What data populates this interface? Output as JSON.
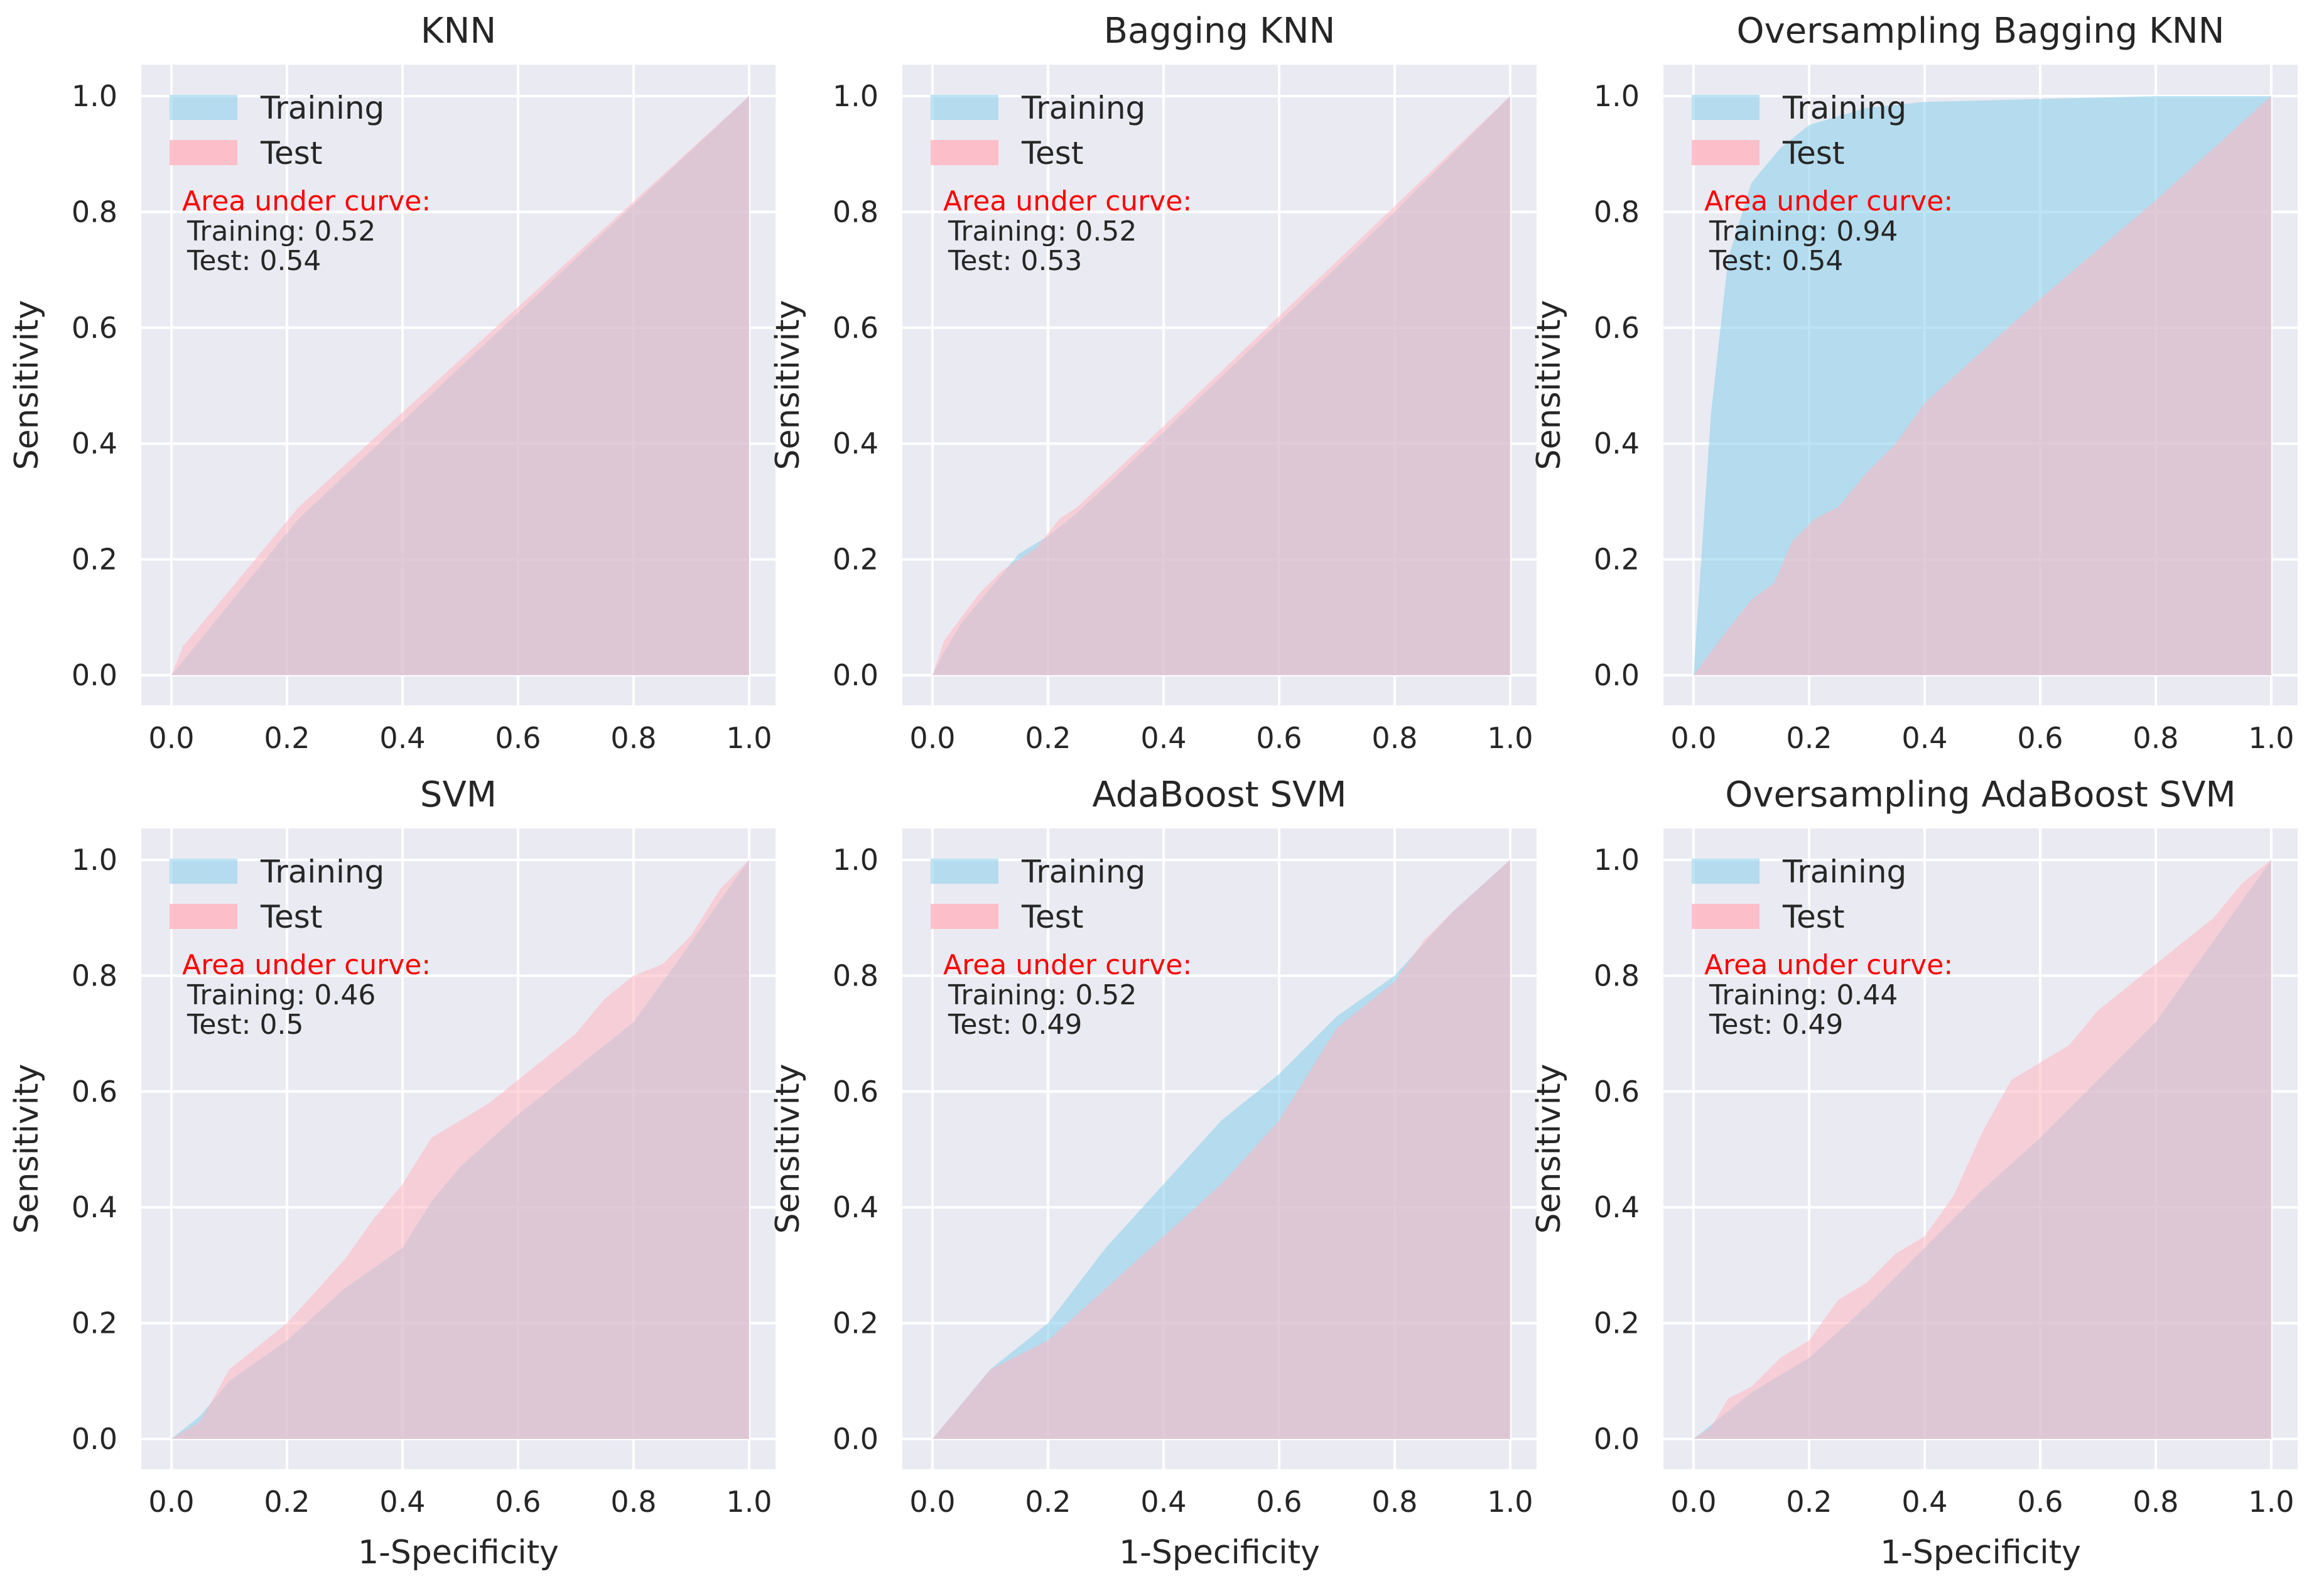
{
  "figure": {
    "colors": {
      "background": "#eaeaf2",
      "grid": "#ffffff",
      "training": "#87ceeb",
      "test": "#ffb6c1",
      "overlap": "#d9b4c0",
      "annotation": "#ff0000"
    }
  },
  "chart_data": [
    {
      "type": "area",
      "title": "KNN",
      "xlabel": "",
      "ylabel": "Sensitivity",
      "xlim": [
        0,
        1
      ],
      "ylim": [
        0,
        1
      ],
      "xticks": [
        "0.0",
        "0.2",
        "0.4",
        "0.6",
        "0.8",
        "1.0"
      ],
      "yticks": [
        "0.0",
        "0.2",
        "0.4",
        "0.6",
        "0.8",
        "1.0"
      ],
      "legend": [
        "Training",
        "Test"
      ],
      "annotation": {
        "heading": "Area under curve:",
        "training": "Training: 0.52",
        "test": "Test: 0.54"
      },
      "series": [
        {
          "name": "Training",
          "x": [
            0,
            0.22,
            1
          ],
          "y": [
            0,
            0.27,
            1
          ]
        },
        {
          "name": "Test",
          "x": [
            0,
            0.02,
            0.22,
            1
          ],
          "y": [
            0,
            0.05,
            0.29,
            1
          ]
        }
      ]
    },
    {
      "type": "area",
      "title": "Bagging KNN",
      "xlabel": "",
      "ylabel": "Sensitivity",
      "xlim": [
        0,
        1
      ],
      "ylim": [
        0,
        1
      ],
      "xticks": [
        "0.0",
        "0.2",
        "0.4",
        "0.6",
        "0.8",
        "1.0"
      ],
      "yticks": [
        "0.0",
        "0.2",
        "0.4",
        "0.6",
        "0.8",
        "1.0"
      ],
      "legend": [
        "Training",
        "Test"
      ],
      "annotation": {
        "heading": "Area under curve:",
        "training": "Training: 0.52",
        "test": "Test: 0.53"
      },
      "series": [
        {
          "name": "Training",
          "x": [
            0,
            0.02,
            0.05,
            0.1,
            0.15,
            0.2,
            0.25,
            0.4,
            0.6,
            0.8,
            1
          ],
          "y": [
            0,
            0.04,
            0.09,
            0.15,
            0.21,
            0.24,
            0.28,
            0.42,
            0.61,
            0.8,
            1
          ]
        },
        {
          "name": "Test",
          "x": [
            0,
            0.02,
            0.05,
            0.08,
            0.12,
            0.18,
            0.22,
            0.25,
            0.4,
            0.6,
            0.8,
            1
          ],
          "y": [
            0,
            0.06,
            0.1,
            0.14,
            0.18,
            0.22,
            0.27,
            0.29,
            0.43,
            0.62,
            0.81,
            1
          ]
        }
      ]
    },
    {
      "type": "area",
      "title": "Oversampling Bagging KNN",
      "xlabel": "",
      "ylabel": "Sensitivity",
      "xlim": [
        0,
        1
      ],
      "ylim": [
        0,
        1
      ],
      "xticks": [
        "0.0",
        "0.2",
        "0.4",
        "0.6",
        "0.8",
        "1.0"
      ],
      "yticks": [
        "0.0",
        "0.2",
        "0.4",
        "0.6",
        "0.8",
        "1.0"
      ],
      "legend": [
        "Training",
        "Test"
      ],
      "annotation": {
        "heading": "Area under curve:",
        "training": "Training: 0.94",
        "test": "Test: 0.54"
      },
      "series": [
        {
          "name": "Training",
          "x": [
            0,
            0.03,
            0.06,
            0.1,
            0.15,
            0.2,
            0.3,
            0.4,
            0.6,
            0.8,
            1
          ],
          "y": [
            0,
            0.45,
            0.72,
            0.85,
            0.91,
            0.95,
            0.98,
            0.99,
            0.995,
            1,
            1
          ]
        },
        {
          "name": "Test",
          "x": [
            0,
            0.03,
            0.06,
            0.1,
            0.14,
            0.17,
            0.21,
            0.25,
            0.3,
            0.35,
            0.4,
            0.5,
            0.6,
            0.8,
            1
          ],
          "y": [
            0,
            0.04,
            0.08,
            0.13,
            0.16,
            0.23,
            0.27,
            0.29,
            0.35,
            0.4,
            0.47,
            0.56,
            0.65,
            0.82,
            1
          ]
        }
      ]
    },
    {
      "type": "area",
      "title": "SVM",
      "xlabel": "1-Specificity",
      "ylabel": "Sensitivity",
      "xlim": [
        0,
        1
      ],
      "ylim": [
        0,
        1
      ],
      "xticks": [
        "0.0",
        "0.2",
        "0.4",
        "0.6",
        "0.8",
        "1.0"
      ],
      "yticks": [
        "0.0",
        "0.2",
        "0.4",
        "0.6",
        "0.8",
        "1.0"
      ],
      "legend": [
        "Training",
        "Test"
      ],
      "annotation": {
        "heading": "Area under curve:",
        "training": "Training: 0.46",
        "test": "Test: 0.5"
      },
      "series": [
        {
          "name": "Training",
          "x": [
            0,
            0.05,
            0.1,
            0.2,
            0.3,
            0.4,
            0.45,
            0.5,
            0.6,
            0.7,
            0.8,
            0.88,
            0.95,
            1
          ],
          "y": [
            0,
            0.04,
            0.1,
            0.17,
            0.26,
            0.33,
            0.41,
            0.47,
            0.56,
            0.64,
            0.72,
            0.83,
            0.93,
            1
          ]
        },
        {
          "name": "Test",
          "x": [
            0,
            0.05,
            0.1,
            0.2,
            0.3,
            0.35,
            0.4,
            0.45,
            0.5,
            0.55,
            0.6,
            0.7,
            0.75,
            0.8,
            0.85,
            0.9,
            0.95,
            1
          ],
          "y": [
            0,
            0.03,
            0.12,
            0.2,
            0.31,
            0.38,
            0.44,
            0.52,
            0.55,
            0.58,
            0.62,
            0.7,
            0.76,
            0.8,
            0.82,
            0.87,
            0.95,
            1
          ]
        }
      ]
    },
    {
      "type": "area",
      "title": "AdaBoost SVM",
      "xlabel": "1-Specificity",
      "ylabel": "Sensitivity",
      "xlim": [
        0,
        1
      ],
      "ylim": [
        0,
        1
      ],
      "xticks": [
        "0.0",
        "0.2",
        "0.4",
        "0.6",
        "0.8",
        "1.0"
      ],
      "yticks": [
        "0.0",
        "0.2",
        "0.4",
        "0.6",
        "0.8",
        "1.0"
      ],
      "legend": [
        "Training",
        "Test"
      ],
      "annotation": {
        "heading": "Area under curve:",
        "training": "Training: 0.52",
        "test": "Test: 0.49"
      },
      "series": [
        {
          "name": "Training",
          "x": [
            0,
            0.05,
            0.1,
            0.2,
            0.3,
            0.4,
            0.5,
            0.6,
            0.7,
            0.8,
            0.9,
            1
          ],
          "y": [
            0,
            0.06,
            0.12,
            0.2,
            0.33,
            0.44,
            0.55,
            0.63,
            0.73,
            0.8,
            0.91,
            1
          ]
        },
        {
          "name": "Test",
          "x": [
            0,
            0.05,
            0.1,
            0.2,
            0.3,
            0.4,
            0.5,
            0.6,
            0.65,
            0.7,
            0.8,
            0.85,
            0.9,
            1
          ],
          "y": [
            0,
            0.06,
            0.12,
            0.17,
            0.26,
            0.35,
            0.44,
            0.55,
            0.63,
            0.71,
            0.79,
            0.86,
            0.91,
            1
          ]
        }
      ]
    },
    {
      "type": "area",
      "title": "Oversampling AdaBoost SVM",
      "xlabel": "1-Specificity",
      "ylabel": "Sensitivity",
      "xlim": [
        0,
        1
      ],
      "ylim": [
        0,
        1
      ],
      "xticks": [
        "0.0",
        "0.2",
        "0.4",
        "0.6",
        "0.8",
        "1.0"
      ],
      "yticks": [
        "0.0",
        "0.2",
        "0.4",
        "0.6",
        "0.8",
        "1.0"
      ],
      "legend": [
        "Training",
        "Test"
      ],
      "annotation": {
        "heading": "Area under curve:",
        "training": "Training: 0.44",
        "test": "Test: 0.49"
      },
      "series": [
        {
          "name": "Training",
          "x": [
            0,
            0.05,
            0.1,
            0.2,
            0.3,
            0.4,
            0.5,
            0.6,
            0.7,
            0.8,
            0.9,
            1
          ],
          "y": [
            0,
            0.04,
            0.08,
            0.14,
            0.23,
            0.33,
            0.43,
            0.52,
            0.62,
            0.72,
            0.86,
            1
          ]
        },
        {
          "name": "Test",
          "x": [
            0,
            0.03,
            0.06,
            0.1,
            0.15,
            0.2,
            0.25,
            0.3,
            0.35,
            0.4,
            0.45,
            0.5,
            0.55,
            0.6,
            0.65,
            0.7,
            0.75,
            0.8,
            0.85,
            0.9,
            0.95,
            1
          ],
          "y": [
            0,
            0.02,
            0.07,
            0.09,
            0.14,
            0.17,
            0.24,
            0.27,
            0.32,
            0.35,
            0.42,
            0.53,
            0.62,
            0.65,
            0.68,
            0.74,
            0.78,
            0.82,
            0.86,
            0.9,
            0.96,
            1
          ]
        }
      ]
    }
  ]
}
